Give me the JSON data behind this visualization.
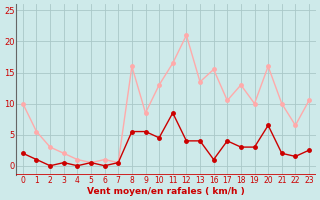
{
  "hours": [
    0,
    1,
    2,
    3,
    4,
    5,
    6,
    7,
    8,
    9,
    10,
    11,
    12,
    13,
    16,
    17,
    18,
    19,
    20,
    21,
    22,
    23
  ],
  "wind_avg": [
    2,
    1,
    0,
    0.5,
    0,
    0.5,
    0,
    0.5,
    5.5,
    5.5,
    4.5,
    8.5,
    4,
    4,
    1,
    4,
    3,
    3,
    6.5,
    2,
    1.5,
    2.5
  ],
  "wind_gust": [
    10,
    5.5,
    3,
    2,
    1,
    0.5,
    1,
    0.5,
    16,
    8.5,
    13,
    16.5,
    21,
    13.5,
    15.5,
    10.5,
    13,
    10,
    16,
    10,
    6.5,
    10.5
  ],
  "x_tick_labels": [
    "0",
    "1",
    "2",
    "3",
    "4",
    "5",
    "6",
    "7",
    "8",
    "9",
    "10",
    "11",
    "12",
    "13",
    "16",
    "17",
    "18",
    "19",
    "20",
    "21",
    "22",
    "23"
  ],
  "yticks": [
    0,
    5,
    10,
    15,
    20,
    25
  ],
  "ylim": [
    -1.5,
    26
  ],
  "xlabel": "Vent moyen/en rafales ( km/h )",
  "bg_color": "#ceeaea",
  "grid_color": "#aac8c8",
  "line_avg_color": "#cc0000",
  "line_gust_color": "#ffaaaa",
  "marker_size": 2.5,
  "line_width": 1.0,
  "fig_width": 3.2,
  "fig_height": 2.0,
  "dpi": 100
}
